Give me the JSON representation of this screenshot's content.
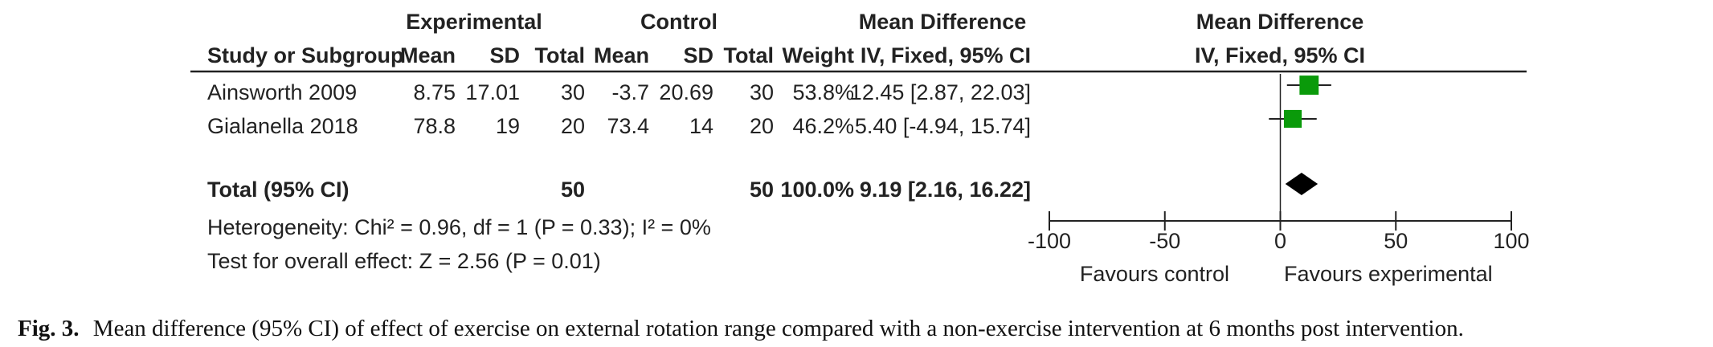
{
  "chart_data": {
    "type": "forest",
    "group_headers": {
      "experimental": "Experimental",
      "control": "Control",
      "mean_difference": "Mean Difference",
      "plot_mean_difference": "Mean Difference"
    },
    "columns": {
      "study": "Study or Subgroup",
      "exp_mean": "Mean",
      "exp_sd": "SD",
      "exp_total": "Total",
      "ctl_mean": "Mean",
      "ctl_sd": "SD",
      "ctl_total": "Total",
      "weight": "Weight",
      "md": "IV, Fixed, 95% CI",
      "plot_md": "IV, Fixed, 95% CI"
    },
    "studies": [
      {
        "name": "Ainsworth 2009",
        "exp_mean": "8.75",
        "exp_sd": "17.01",
        "exp_total": "30",
        "ctl_mean": "-3.7",
        "ctl_sd": "20.69",
        "ctl_total": "30",
        "weight": "53.8%",
        "ci_text": "12.45 [2.87, 22.03]",
        "md": 12.45,
        "lower": 2.87,
        "upper": 22.03,
        "weight_pct": 53.8
      },
      {
        "name": "Gialanella 2018",
        "exp_mean": "78.8",
        "exp_sd": "19",
        "exp_total": "20",
        "ctl_mean": "73.4",
        "ctl_sd": "14",
        "ctl_total": "20",
        "weight": "46.2%",
        "ci_text": "5.40 [-4.94, 15.74]",
        "md": 5.4,
        "lower": -4.94,
        "upper": 15.74,
        "weight_pct": 46.2
      }
    ],
    "total": {
      "label": "Total (95% CI)",
      "exp_total": "50",
      "ctl_total": "50",
      "weight": "100.0%",
      "ci_text": "9.19 [2.16, 16.22]",
      "md": 9.19,
      "lower": 2.16,
      "upper": 16.22
    },
    "heterogeneity": "Heterogeneity: Chi² = 0.96, df = 1 (P = 0.33); I² = 0%",
    "overall_effect": "Test for overall effect: Z = 2.56 (P = 0.01)",
    "xlim": [
      -100,
      100
    ],
    "xticks": [
      -100,
      -50,
      0,
      50,
      100
    ],
    "xtick_labels": [
      "-100",
      "-50",
      "0",
      "50",
      "100"
    ],
    "favours_left": "Favours control",
    "favours_right": "Favours experimental",
    "colors": {
      "study_marker": "#0a9a0a",
      "summary_marker": "#000000",
      "text": "#222222"
    }
  },
  "caption": {
    "label": "Fig. 3.",
    "text": "Mean difference (95% CI) of effect of exercise on external rotation range compared with a non-exercise intervention at 6 months post intervention."
  }
}
